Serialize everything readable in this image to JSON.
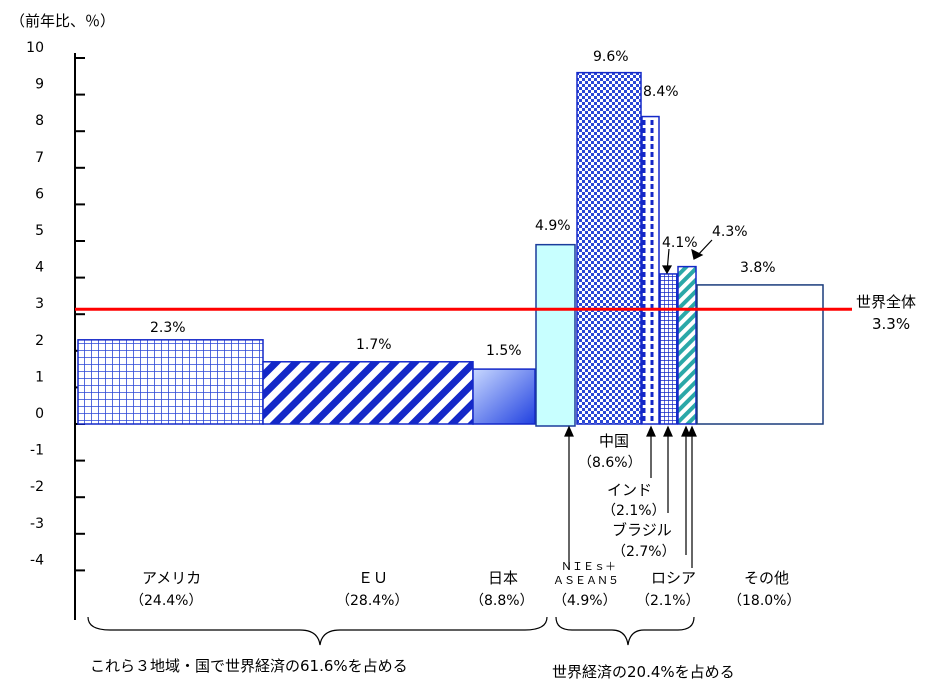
{
  "chart_data": {
    "type": "bar",
    "ylabel": "（前年比、％）",
    "ylim": [
      -4,
      10
    ],
    "y_ticks": [
      "10",
      "9",
      "8",
      "7",
      "6",
      "5",
      "4",
      "3",
      "2",
      "1",
      "0",
      "-1",
      "-2",
      "-3",
      "-4"
    ],
    "bar_width_meaning": "share of world economy (%)",
    "categories": [
      "アメリカ",
      "ＥＵ",
      "日本",
      "ＮＩＥｓ＋ＡＳＥＡＮ５",
      "中国",
      "インド",
      "ロシア",
      "ブラジル",
      "その他"
    ],
    "bars": [
      {
        "key": "us",
        "name": "アメリカ",
        "share_label": "（24.4%）",
        "share": 24.4,
        "value": 2.3,
        "value_label": "2.3%",
        "pattern": "grid-blue",
        "color": "#2b47d6"
      },
      {
        "key": "eu",
        "name": "ＥＵ",
        "share_label": "（28.4%）",
        "share": 28.4,
        "value": 1.7,
        "value_label": "1.7%",
        "pattern": "diagonal-blue",
        "color": "#1428c8"
      },
      {
        "key": "jp",
        "name": "日本",
        "share_label": "（8.8%）",
        "share": 8.8,
        "value": 1.5,
        "value_label": "1.5%",
        "pattern": "gradient-blue",
        "color": "#3355e0"
      },
      {
        "key": "nies",
        "name_line1": "ＮＩＥｓ＋",
        "name_line2": "ＡＳＥＡＮ５",
        "share_label": "（4.9%）",
        "share": 4.9,
        "value": 4.9,
        "value_label": "4.9%",
        "pattern": "solid-cyan",
        "color": "#c8ffff"
      },
      {
        "key": "cn",
        "name": "中国",
        "share_label": "（8.6%）",
        "share": 8.6,
        "value": 9.6,
        "value_label": "9.6%",
        "pattern": "checker-blue",
        "color": "#2b47d6"
      },
      {
        "key": "in",
        "name": "インド",
        "share_label": "（2.1%）",
        "share": 2.1,
        "value": 8.4,
        "value_label": "8.4%",
        "pattern": "dashed-blue",
        "color": "#1428c8"
      },
      {
        "key": "br",
        "name": "ブラジル",
        "share_label": "（2.7%）",
        "share": 2.7,
        "value": 4.1,
        "value_label": "4.1%",
        "pattern": "grid-blue-dense",
        "color": "#1428c8"
      },
      {
        "key": "ru",
        "name": "ロシア",
        "share_label": "（2.1%）",
        "share": 2.1,
        "value": 4.3,
        "value_label": "4.3%",
        "pattern": "diagonal-teal",
        "color": "#2aa8a8"
      },
      {
        "key": "other",
        "name": "その他",
        "share_label": "（18.0%）",
        "share": 18.0,
        "value": 3.8,
        "value_label": "3.8%",
        "pattern": "white",
        "color": "#ffffff"
      }
    ],
    "reference_line": {
      "name": "世界全体",
      "value": 3.3,
      "value_label": "3.3%",
      "color": "#ff0000"
    },
    "groups": [
      {
        "label": "これら３地域・国で世界経済の61.6%を占める"
      },
      {
        "label": "世界経済の20.4%を占める"
      }
    ]
  }
}
